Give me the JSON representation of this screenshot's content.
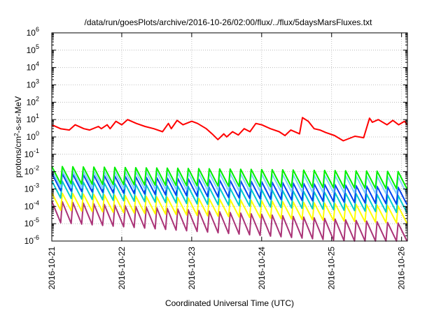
{
  "chart_data": {
    "type": "line",
    "title": "/data/run/goesPlots/archive/2016-10-26/02:00/flux/../flux/5daysMarsFluxes.txt",
    "xlabel": "Coordinated Universal Time (UTC)",
    "ylabel": {
      "main": "protons/cm",
      "sup": "2",
      "rest": "-s-sr-MeV"
    },
    "xlim": [
      "2016-10-21",
      "2016-10-26T02:00"
    ],
    "ylim": [
      1e-06,
      1000000
    ],
    "yscale": "log",
    "grid": true,
    "x_ticks": [
      "2016-10-21",
      "2016-10-22",
      "2016-10-23",
      "2016-10-24",
      "2016-10-25",
      "2016-10-26"
    ],
    "y_ticks": [
      {
        "base": "10",
        "exp": "-6"
      },
      {
        "base": "10",
        "exp": "-5"
      },
      {
        "base": "10",
        "exp": "-4"
      },
      {
        "base": "10",
        "exp": "-3"
      },
      {
        "base": "10",
        "exp": "-2"
      },
      {
        "base": "10",
        "exp": "-1"
      },
      {
        "base": "10",
        "exp": "0"
      },
      {
        "base": "10",
        "exp": "1"
      },
      {
        "base": "10",
        "exp": "2"
      },
      {
        "base": "10",
        "exp": "3"
      },
      {
        "base": "10",
        "exp": "4"
      },
      {
        "base": "10",
        "exp": "5"
      },
      {
        "base": "10",
        "exp": "6"
      }
    ],
    "series": [
      {
        "color": "#ff0000",
        "x": [
          "2016-10-21T00:00",
          "2016-10-21T03:00",
          "2016-10-21T06:00",
          "2016-10-21T08:00",
          "2016-10-21T11:00",
          "2016-10-21T13:00",
          "2016-10-21T16:00",
          "2016-10-21T17:00",
          "2016-10-21T19:00",
          "2016-10-21T20:00",
          "2016-10-21T22:00",
          "2016-10-22T00:00",
          "2016-10-22T02:00",
          "2016-10-22T05:00",
          "2016-10-22T08:00",
          "2016-10-22T11:00",
          "2016-10-22T14:00",
          "2016-10-22T16:00",
          "2016-10-22T17:00",
          "2016-10-22T19:00",
          "2016-10-22T21:00",
          "2016-10-23T00:00",
          "2016-10-23T02:00",
          "2016-10-23T05:00",
          "2016-10-23T07:00",
          "2016-10-23T09:00",
          "2016-10-23T11:00",
          "2016-10-23T12:00",
          "2016-10-23T14:00",
          "2016-10-23T16:00",
          "2016-10-23T18:00",
          "2016-10-23T20:00",
          "2016-10-23T22:00",
          "2016-10-24T00:00",
          "2016-10-24T03:00",
          "2016-10-24T06:00",
          "2016-10-24T08:00",
          "2016-10-24T10:00",
          "2016-10-24T13:00",
          "2016-10-24T14:00",
          "2016-10-24T16:00",
          "2016-10-24T18:00",
          "2016-10-24T20:00",
          "2016-10-24T22:00",
          "2016-10-25T01:00",
          "2016-10-25T04:00",
          "2016-10-25T08:00",
          "2016-10-25T11:00",
          "2016-10-25T13:00",
          "2016-10-25T14:00",
          "2016-10-25T16:00",
          "2016-10-25T19:00",
          "2016-10-25T21:00",
          "2016-10-25T23:00",
          "2016-10-26T01:00",
          "2016-10-26T02:00"
        ],
        "y": [
          5,
          3,
          2.5,
          5,
          3,
          2.5,
          4,
          3,
          5,
          3,
          8,
          5,
          10,
          6,
          4,
          3,
          2,
          6,
          3,
          9,
          5,
          8,
          6,
          3,
          1.5,
          0.7,
          1.5,
          1,
          2,
          1.3,
          3,
          2,
          6,
          5,
          3,
          2,
          1.2,
          2.5,
          1.5,
          13,
          8,
          3,
          2.5,
          1.8,
          1.2,
          0.6,
          1.1,
          0.9,
          12,
          7,
          10,
          5,
          9,
          5,
          8,
          5
        ]
      },
      {
        "color": "#00ee00",
        "x": [
          "2016-10-21T00:00",
          "2016-10-26T02:00"
        ],
        "y": [
          0.02,
          0.01
        ],
        "sawtooth": {
          "period_hours": 3.6
        }
      },
      {
        "color": "#80d0ff",
        "x": [
          "2016-10-21T00:00",
          "2016-10-26T02:00"
        ],
        "y": [
          0.012,
          0.005
        ],
        "sawtooth": {
          "period_hours": 3.6
        }
      },
      {
        "color": "#0044ee",
        "x": [
          "2016-10-21T00:00",
          "2016-10-26T02:00"
        ],
        "y": [
          0.008,
          0.0012
        ],
        "sawtooth": {
          "period_hours": 3.6
        }
      },
      {
        "color": "#00cccc",
        "x": [
          "2016-10-21T00:00",
          "2016-10-26T02:00"
        ],
        "y": [
          0.003,
          0.0004
        ],
        "sawtooth": {
          "period_hours": 3.6
        }
      },
      {
        "color": "#ffff00",
        "x": [
          "2016-10-21T00:00",
          "2016-10-26T02:00"
        ],
        "y": [
          0.0006,
          0.0001
        ],
        "sawtooth": {
          "period_hours": 3.6
        }
      },
      {
        "color": "#aa3377",
        "x": [
          "2016-10-21T00:00",
          "2016-10-26T02:00"
        ],
        "y": [
          0.0002,
          1e-05
        ],
        "sawtooth": {
          "period_hours": 3.6
        }
      }
    ]
  }
}
